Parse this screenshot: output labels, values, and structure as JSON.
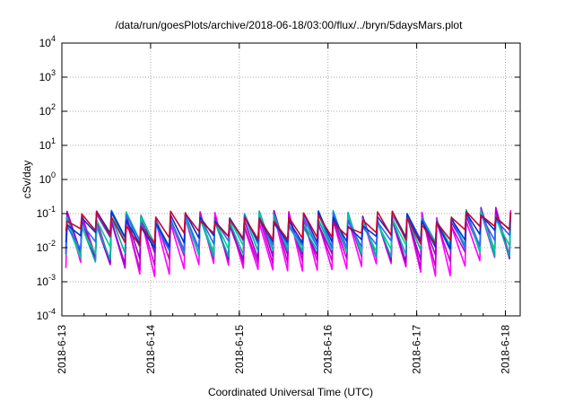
{
  "chart_data": {
    "type": "line",
    "title": "/data/run/goesPlots/archive/2018-06-18/03:00/flux/../bryn/5daysMars.plot",
    "xlabel": "Coordinated Universal Time (UTC)",
    "ylabel": "cSv/day",
    "x_range": [
      "2018-06-13 00:00",
      "2018-06-18 04:00"
    ],
    "x_ticks": [
      "2018-6-13",
      "2018-6-14",
      "2018-6-15",
      "2018-6-16",
      "2018-6-17",
      "2018-6-18"
    ],
    "y_scale": "log",
    "ylim": [
      0.0001,
      10000
    ],
    "y_ticks": [
      {
        "base": "10",
        "exp": "-4"
      },
      {
        "base": "10",
        "exp": "-3"
      },
      {
        "base": "10",
        "exp": "-2"
      },
      {
        "base": "10",
        "exp": "-1"
      },
      {
        "base": "10",
        "exp": "0"
      },
      {
        "base": "10",
        "exp": "1"
      },
      {
        "base": "10",
        "exp": "2"
      },
      {
        "base": "10",
        "exp": "3"
      },
      {
        "base": "10",
        "exp": "4"
      }
    ],
    "grid": true,
    "pattern": {
      "period_hours": 4.0,
      "series_colors": [
        "#ff00ff",
        "#cc00cc",
        "#9900cc",
        "#00aaaa",
        "#00cc99",
        "#3366ff",
        "#0033cc",
        "#cc0033"
      ],
      "peak_y": 0.1,
      "trough_y": [
        0.003,
        0.005,
        0.007,
        0.009,
        0.012,
        0.015,
        0.02,
        0.025
      ]
    }
  }
}
